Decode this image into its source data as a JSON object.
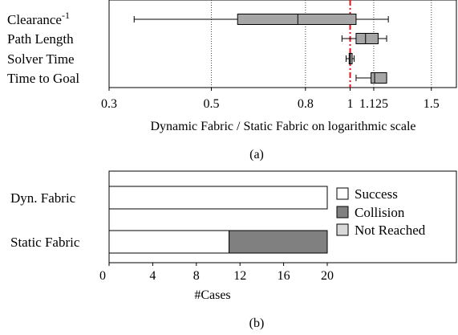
{
  "chart_data": [
    {
      "type": "box",
      "scale": "log",
      "xlabel": "Dynamic Fabric / Static Fabric on logarithmic scale",
      "xlim": [
        0.3,
        1.7
      ],
      "xticks": [
        "0.3",
        "0.5",
        "0.8",
        "1",
        "1.125",
        "1.5"
      ],
      "xtick_values": [
        0.3,
        0.5,
        0.8,
        1,
        1.125,
        1.5
      ],
      "grid_x_dotted": [
        0.5,
        0.8,
        1.125,
        1.5
      ],
      "reference_line": {
        "value": 1,
        "color": "#e8101c",
        "style": "dash-dot"
      },
      "caption": "(a)",
      "categories": [
        {
          "name": "Clearance",
          "superscript": "-1",
          "whisker_low": 0.34,
          "q1": 0.57,
          "median": 0.77,
          "q3": 1.03,
          "whisker_high": 1.21
        },
        {
          "name": "Path Length",
          "whisker_low": 0.96,
          "q1": 1.03,
          "median": 1.08,
          "q3": 1.15,
          "whisker_high": 1.2
        },
        {
          "name": "Solver Time",
          "whisker_low": 0.98,
          "q1": 0.995,
          "median": 1.0,
          "q3": 1.01,
          "whisker_high": 1.02
        },
        {
          "name": "Time to Goal",
          "whisker_low": 1.03,
          "q1": 1.11,
          "median": 1.13,
          "q3": 1.2,
          "whisker_high": 1.2
        }
      ],
      "box_color": "#a6a6a6"
    },
    {
      "type": "bar",
      "orientation": "horizontal",
      "stacked": true,
      "xlabel": "#Cases",
      "xlim": [
        0,
        20
      ],
      "xticks": [
        "0",
        "4",
        "8",
        "12",
        "16",
        "20"
      ],
      "xtick_values": [
        0,
        4,
        8,
        12,
        16,
        20
      ],
      "categories": [
        "Dyn. Fabric",
        "Static Fabric"
      ],
      "series": [
        {
          "name": "Success",
          "values": [
            20,
            11
          ],
          "color": "#ffffff"
        },
        {
          "name": "Collision",
          "values": [
            0,
            9
          ],
          "color": "#808080"
        },
        {
          "name": "Not Reached",
          "values": [
            0,
            0
          ],
          "color": "#d9d9d9"
        }
      ],
      "legend_position": "right",
      "caption": "(b)"
    }
  ]
}
